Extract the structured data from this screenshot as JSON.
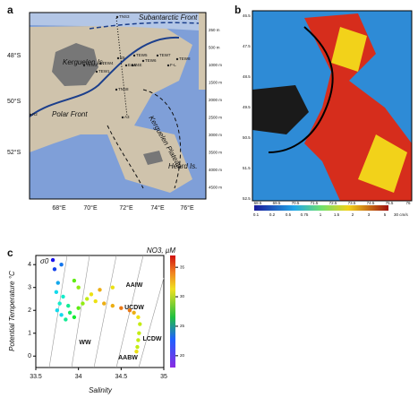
{
  "panels": {
    "a": {
      "label": "a",
      "features": [
        "Subantarctic Front",
        "Kerguelen Is.",
        "Polar Front",
        "Kerguelen Plateau",
        "Heard Is."
      ],
      "stations": [
        "TNS3",
        "E5",
        "TEW3",
        "TEW4",
        "TEW5",
        "TEW6",
        "TEW7",
        "TEW8",
        "TEW1",
        "E4E",
        "E4W",
        "F-L",
        "TNS8",
        "A3",
        "R2"
      ],
      "lat_labels": [
        "48°S",
        "50°S",
        "52°S"
      ],
      "lon_labels": [
        "68°E",
        "70°E",
        "72°E",
        "74°E",
        "76°E"
      ],
      "depth_labels": [
        "250 m",
        "500 m",
        "1000 m",
        "1500 m",
        "2000 m",
        "2500 m",
        "3000 m",
        "3500 m",
        "4000 m",
        "4500 m"
      ]
    },
    "b": {
      "label": "b",
      "lat_labels": [
        "46.5",
        "47.5",
        "48.5",
        "49.5",
        "50.5",
        "51.5",
        "52.5"
      ],
      "lon_labels": [
        "68.5",
        "69.5",
        "70.5",
        "71.5",
        "72.5",
        "73.5",
        "74.5",
        "75.5",
        "76"
      ],
      "colorbar_labels": [
        "0.1",
        "0.2",
        "0.5",
        "0.75",
        "1",
        "1.5",
        "2",
        "3",
        "5"
      ],
      "scale_label": "30 cm/s"
    }
  },
  "chart_data": {
    "type": "scatter",
    "label": "c",
    "title": "NO3, µM",
    "density_label": "σ0",
    "x_label": "Salinity",
    "y_label": "Potential Temperature °C",
    "annotations": [
      "AAIW",
      "UCDW",
      "LCDW",
      "WW",
      "AABW"
    ],
    "x": [
      33.75,
      33.8,
      33.78,
      33.85,
      33.9,
      33.82,
      33.76,
      33.72,
      33.7,
      33.8,
      33.74,
      33.88,
      33.95,
      34.0,
      34.05,
      34.1,
      34.2,
      34.3,
      34.4,
      34.5,
      34.6,
      34.65,
      34.7,
      34.72,
      34.71,
      34.7,
      34.69,
      34.68,
      34.15,
      34.25,
      34.0,
      33.95,
      34.4
    ],
    "values": [
      2.0,
      1.8,
      2.3,
      1.6,
      1.9,
      2.6,
      3.2,
      3.8,
      4.2,
      4.0,
      2.8,
      2.2,
      1.7,
      2.1,
      2.3,
      2.5,
      2.4,
      2.3,
      2.2,
      2.1,
      2.0,
      1.9,
      1.7,
      1.4,
      1.0,
      0.7,
      0.4,
      0.2,
      2.7,
      2.9,
      3.0,
      3.3,
      3.0
    ],
    "z": [
      24,
      24,
      25,
      26,
      27,
      25,
      23,
      21,
      20,
      22,
      24,
      26,
      28,
      30,
      31,
      32,
      33,
      34,
      34,
      35,
      35,
      34,
      33,
      32,
      32,
      32,
      32,
      33,
      33,
      34,
      31,
      30,
      33
    ],
    "xlim": [
      33.5,
      35
    ],
    "ylim": [
      -0.5,
      4.4
    ],
    "zlim": [
      18,
      37
    ],
    "xticks": [
      33.5,
      34,
      34.5,
      35
    ],
    "yticks": [
      0,
      1,
      2,
      3,
      4
    ],
    "zticks": [
      20,
      25,
      30,
      35
    ]
  }
}
